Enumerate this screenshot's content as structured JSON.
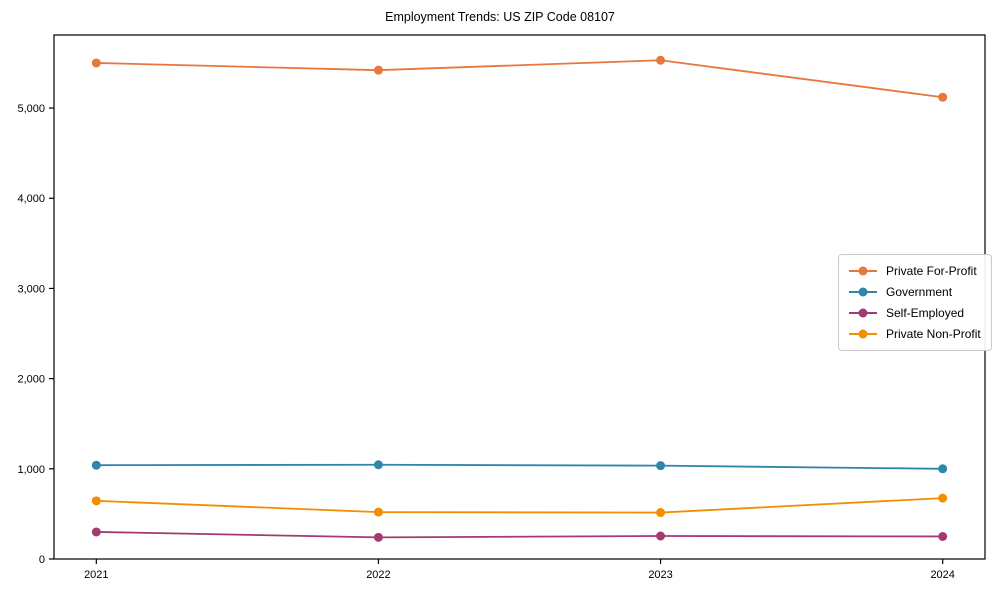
{
  "chart_data": {
    "type": "line",
    "title": "Employment Trends: US ZIP Code 08107",
    "x": [
      2021,
      2022,
      2023,
      2024
    ],
    "x_tick_labels": [
      "2021",
      "2022",
      "2023",
      "2024"
    ],
    "y_ticks": [
      0,
      1000,
      2000,
      3000,
      4000,
      5000
    ],
    "y_tick_labels": [
      "0",
      "1,000",
      "2,000",
      "3,000",
      "4,000",
      "5,000"
    ],
    "xlim": [
      2020.85,
      2024.15
    ],
    "ylim": [
      0,
      5810
    ],
    "grid": false,
    "legend_position": "center-right",
    "series": [
      {
        "name": "Private For-Profit",
        "color": "#E8773C",
        "values": [
          5500,
          5420,
          5530,
          5120
        ]
      },
      {
        "name": "Government",
        "color": "#2E86AB",
        "values": [
          1040,
          1045,
          1035,
          1000
        ]
      },
      {
        "name": "Self-Employed",
        "color": "#A23B72",
        "values": [
          300,
          240,
          255,
          250
        ]
      },
      {
        "name": "Private Non-Profit",
        "color": "#F18F01",
        "values": [
          645,
          520,
          515,
          675
        ]
      }
    ],
    "axis_color": "#000000",
    "background_color": "#ffffff"
  }
}
